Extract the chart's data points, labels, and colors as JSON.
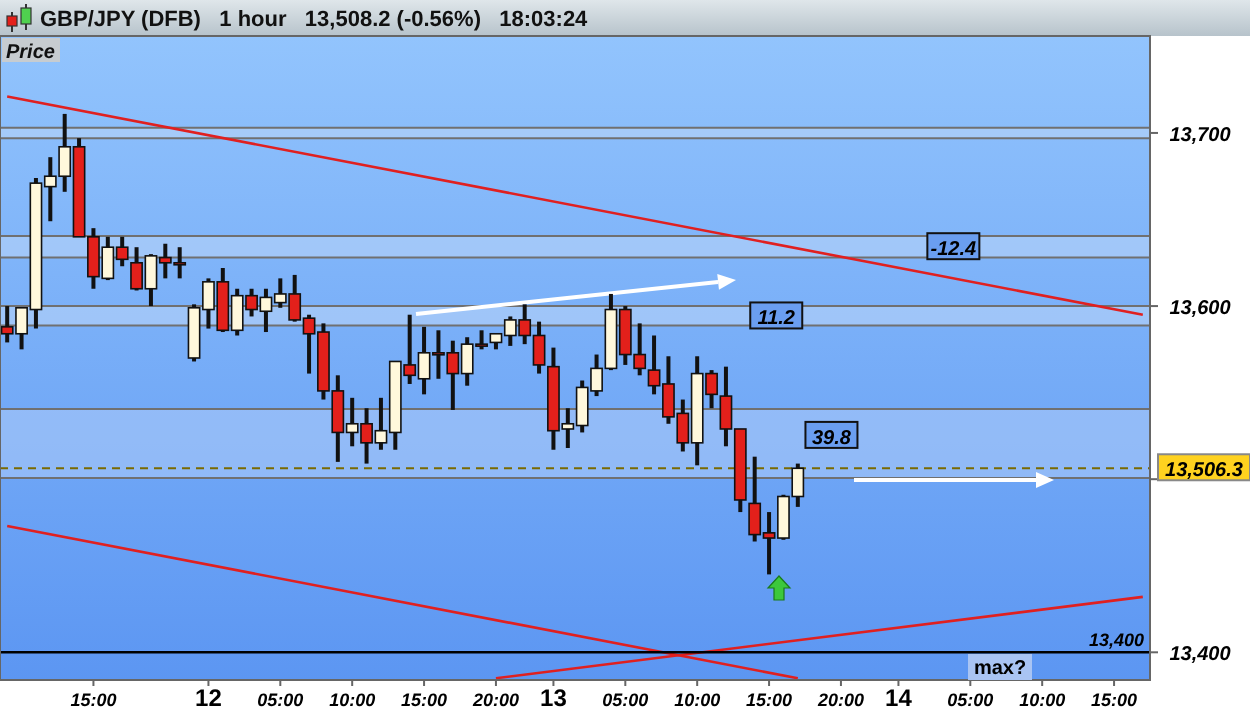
{
  "chart_data": {
    "type": "candlestick",
    "title": "GBP/JPY (DFB)   1 hour   13,508.2 (-0.56%)   18:03:24",
    "ylabel": "Price",
    "categories": [
      null,
      null,
      null,
      null,
      null,
      null,
      "15:00",
      null,
      null,
      null,
      null,
      null,
      null,
      null,
      "12",
      null,
      null,
      null,
      null,
      "05:00",
      null,
      null,
      null,
      null,
      "10:00",
      null,
      null,
      null,
      null,
      "15:00",
      null,
      null,
      null,
      null,
      "20:00",
      null,
      null,
      null,
      "13",
      null,
      null,
      null,
      null,
      "05:00",
      null,
      null,
      null,
      null,
      "10:00",
      null,
      null,
      null,
      null,
      "15:00",
      null,
      null,
      null,
      null,
      "20:00",
      null,
      null,
      null,
      "14",
      null,
      null,
      null,
      null,
      "05:00",
      null,
      null,
      null,
      null,
      "10:00",
      null,
      null,
      null,
      null,
      "15:00",
      null,
      null
    ],
    "ylim": [
      13384,
      13756
    ],
    "yticks": [
      {
        "value": 13700,
        "label": "13,700"
      },
      {
        "value": 13600,
        "label": "13,600"
      },
      {
        "value": 13500,
        "label": null
      },
      {
        "value": 13400,
        "label": "13,400"
      }
    ],
    "series": [
      {
        "ohlc": [
          [
            13588,
            13600,
            13579,
            13584
          ],
          [
            13584,
            13599,
            13575,
            13599
          ],
          [
            13598,
            13674,
            13587,
            13671
          ],
          [
            13669,
            13686,
            13649,
            13675
          ],
          [
            13675,
            13711,
            13666,
            13692
          ],
          [
            13692,
            13697,
            13640,
            13640
          ],
          [
            13640,
            13645,
            13610,
            13617
          ],
          [
            13616,
            13640,
            13615,
            13634
          ],
          [
            13634,
            13640,
            13623,
            13627
          ],
          [
            13625,
            13634,
            13609,
            13610
          ],
          [
            13610,
            13630,
            13600,
            13629
          ],
          [
            13628,
            13636,
            13616,
            13625
          ],
          [
            13625,
            13634,
            13616,
            13624
          ],
          [
            13570,
            13601,
            13568,
            13599
          ],
          [
            13598,
            13616,
            13587,
            13614
          ],
          [
            13614,
            13622,
            13585,
            13586
          ],
          [
            13586,
            13610,
            13583,
            13606
          ],
          [
            13606,
            13610,
            13594,
            13598
          ],
          [
            13597,
            13610,
            13585,
            13605
          ],
          [
            13602,
            13616,
            13599,
            13607
          ],
          [
            13607,
            13618,
            13591,
            13592
          ],
          [
            13593,
            13595,
            13561,
            13584
          ],
          [
            13585,
            13590,
            13546,
            13551
          ],
          [
            13551,
            13560,
            13510,
            13527
          ],
          [
            13527,
            13547,
            13519,
            13532
          ],
          [
            13532,
            13541,
            13509,
            13521
          ],
          [
            13521,
            13547,
            13517,
            13528
          ],
          [
            13527,
            13568,
            13517,
            13568
          ],
          [
            13566,
            13595,
            13555,
            13560
          ],
          [
            13558,
            13588,
            13549,
            13573
          ],
          [
            13573,
            13586,
            13558,
            13572
          ],
          [
            13573,
            13580,
            13540,
            13561
          ],
          [
            13561,
            13582,
            13554,
            13578
          ],
          [
            13578,
            13586,
            13575,
            13577
          ],
          [
            13579,
            13584,
            13575,
            13584
          ],
          [
            13583,
            13594,
            13577,
            13592
          ],
          [
            13592,
            13601,
            13578,
            13583
          ],
          [
            13583,
            13591,
            13561,
            13566
          ],
          [
            13565,
            13576,
            13517,
            13528
          ],
          [
            13529,
            13541,
            13518,
            13532
          ],
          [
            13531,
            13557,
            13527,
            13553
          ],
          [
            13551,
            13572,
            13548,
            13564
          ],
          [
            13564,
            13607,
            13563,
            13598
          ],
          [
            13598,
            13600,
            13566,
            13572
          ],
          [
            13572,
            13590,
            13560,
            13564
          ],
          [
            13563,
            13583,
            13549,
            13554
          ],
          [
            13555,
            13571,
            13532,
            13536
          ],
          [
            13538,
            13546,
            13516,
            13521
          ],
          [
            13521,
            13571,
            13508,
            13561
          ],
          [
            13561,
            13563,
            13541,
            13549
          ],
          [
            13548,
            13565,
            13519,
            13529
          ],
          [
            13529,
            13529,
            13481,
            13488
          ],
          [
            13486,
            13513,
            13464,
            13468
          ],
          [
            13469,
            13481,
            13445,
            13466
          ],
          [
            13466,
            13491,
            13465,
            13490
          ],
          [
            13490,
            13509,
            13484,
            13506.3
          ],
          null,
          null,
          null,
          null,
          null,
          null,
          null,
          null,
          null,
          null,
          null,
          null,
          null,
          null,
          null,
          null,
          null,
          null,
          null,
          null,
          null,
          null,
          null,
          null
        ],
        "colors": [
          "#e3201b",
          "#fff8dc",
          "#fff8dc",
          "#fff8dc",
          "#fff8dc",
          "#e3201b",
          "#e3201b",
          "#fff8dc",
          "#e3201b",
          "#e3201b",
          "#fff8dc",
          "#e3201b",
          "#e3201b",
          "#fff8dc",
          "#fff8dc",
          "#e3201b",
          "#fff8dc",
          "#e3201b",
          "#fff8dc",
          "#fff8dc",
          "#e3201b",
          "#e3201b",
          "#e3201b",
          "#e3201b",
          "#fff8dc",
          "#e3201b",
          "#fff8dc",
          "#fff8dc",
          "#e3201b",
          "#fff8dc",
          "#e3201b",
          "#e3201b",
          "#fff8dc",
          "#e3201b",
          "#fff8dc",
          "#fff8dc",
          "#e3201b",
          "#e3201b",
          "#e3201b",
          "#fff8dc",
          "#fff8dc",
          "#fff8dc",
          "#fff8dc",
          "#e3201b",
          "#e3201b",
          "#e3201b",
          "#e3201b",
          "#e3201b",
          "#fff8dc",
          "#e3201b",
          "#e3201b",
          "#e3201b",
          "#e3201b",
          "#e3201b",
          "#fff8dc",
          "#fff8dc",
          null,
          null,
          null,
          null,
          null,
          null,
          null,
          null,
          null,
          null,
          null,
          null,
          null,
          null,
          null,
          null,
          null,
          null,
          null,
          null,
          null,
          null,
          null,
          null
        ]
      },
      {
        "type": "line",
        "color": "#e02020",
        "values": [
          13721,
          null,
          null,
          null,
          null,
          null,
          null,
          null,
          null,
          null,
          null,
          null,
          null,
          null,
          null,
          null,
          null,
          null,
          null,
          null,
          null,
          null,
          null,
          null,
          null,
          null,
          null,
          null,
          null,
          null,
          null,
          null,
          null,
          null,
          null,
          null,
          null,
          null,
          null,
          null,
          null,
          null,
          null,
          null,
          null,
          null,
          null,
          null,
          null,
          null,
          null,
          null,
          null,
          null,
          null,
          null,
          null,
          null,
          null,
          null,
          null,
          null,
          null,
          null,
          null,
          null,
          null,
          null,
          null,
          null,
          null,
          null,
          null,
          null,
          null,
          null,
          null,
          null,
          null,
          13595
        ]
      },
      {
        "type": "line",
        "color": "#e02020",
        "values": [
          13473,
          null,
          null,
          null,
          null,
          null,
          null,
          null,
          null,
          null,
          null,
          null,
          null,
          null,
          null,
          null,
          null,
          null,
          null,
          null,
          null,
          null,
          null,
          null,
          null,
          null,
          null,
          null,
          null,
          null,
          null,
          null,
          null,
          null,
          null,
          null,
          null,
          null,
          null,
          null,
          null,
          null,
          null,
          null,
          null,
          null,
          null,
          null,
          null,
          null,
          null,
          null,
          null,
          null,
          null,
          13385,
          null,
          null,
          null,
          null,
          null,
          null,
          null,
          null,
          null,
          null,
          null,
          null,
          null,
          null,
          null,
          null,
          null,
          null,
          null,
          null,
          null,
          null,
          null,
          null
        ]
      },
      {
        "type": "line",
        "color": "#e02020",
        "values": [
          null,
          null,
          null,
          null,
          null,
          null,
          null,
          null,
          null,
          null,
          null,
          null,
          null,
          null,
          null,
          null,
          null,
          null,
          null,
          null,
          null,
          null,
          null,
          null,
          null,
          null,
          null,
          null,
          null,
          null,
          null,
          null,
          null,
          null,
          13385,
          null,
          null,
          null,
          null,
          null,
          null,
          null,
          null,
          null,
          null,
          null,
          null,
          null,
          null,
          null,
          null,
          null,
          null,
          null,
          null,
          null,
          null,
          null,
          null,
          null,
          null,
          null,
          null,
          null,
          null,
          null,
          null,
          null,
          null,
          null,
          null,
          null,
          null,
          null,
          null,
          null,
          null,
          null,
          null,
          13432
        ]
      }
    ],
    "bands": [
      {
        "axis": "y",
        "from": 13697,
        "to": 13703,
        "color": "#b8d4f8"
      },
      {
        "axis": "y",
        "from": 13628,
        "to": 13640.4,
        "color": "#b8d4f8"
      },
      {
        "axis": "y",
        "from": 13588.8,
        "to": 13600,
        "color": "#b8d4f8"
      },
      {
        "axis": "y",
        "from": 13500.7,
        "to": 13540.5,
        "color": "#a8c8f8"
      }
    ],
    "ref_lines": [
      {
        "axis": "y",
        "value": 13506.3,
        "label": "13,506.3",
        "color": "#7a6a00",
        "line_style": "dashed"
      },
      {
        "axis": "y",
        "value": 13400,
        "label": "13,400",
        "color": "#000000",
        "line_style": "solid"
      }
    ],
    "annotations": [
      {
        "text": "-12.4",
        "y": 13634
      },
      {
        "text": "11.2",
        "y": 13594
      },
      {
        "text": "39.8",
        "y": 13525
      },
      "max?"
    ]
  }
}
